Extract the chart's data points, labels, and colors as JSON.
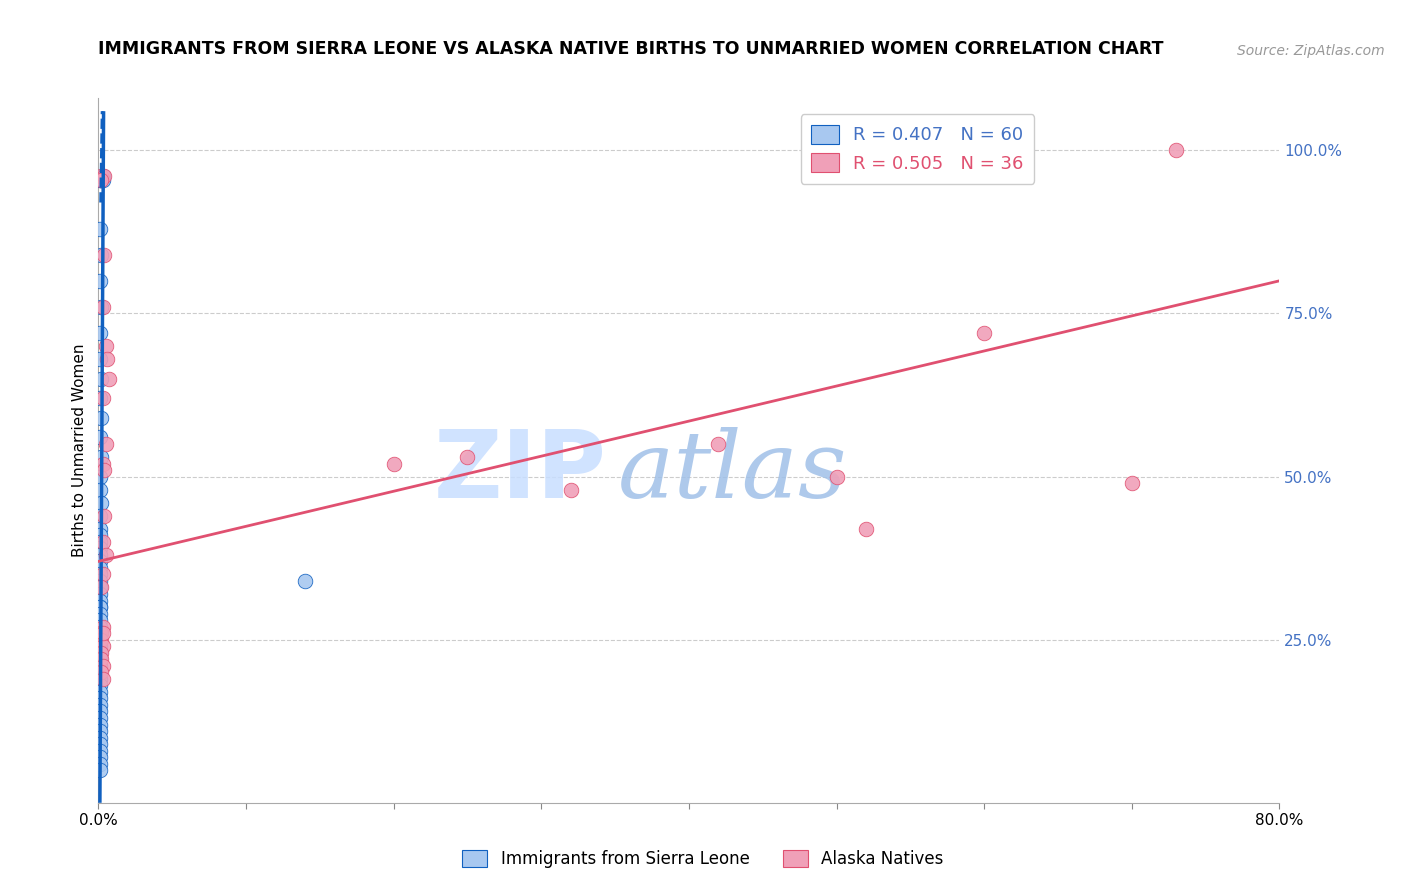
{
  "title": "IMMIGRANTS FROM SIERRA LEONE VS ALASKA NATIVE BIRTHS TO UNMARRIED WOMEN CORRELATION CHART",
  "source": "Source: ZipAtlas.com",
  "ylabel_left": "Births to Unmarried Women",
  "xlim": [
    0.0,
    0.8
  ],
  "ylim": [
    0.0,
    1.08
  ],
  "blue_color": "#A8C8F0",
  "pink_color": "#F0A0B8",
  "blue_line_color": "#1060C0",
  "pink_line_color": "#E05070",
  "legend_blue_label": "R = 0.407   N = 60",
  "legend_pink_label": "R = 0.505   N = 36",
  "watermark_zip": "ZIP",
  "watermark_atlas": "atlas",
  "watermark_color": "#C8DEFF",
  "blue_scatter_x": [
    0.001,
    0.002,
    0.003,
    0.002,
    0.003,
    0.001,
    0.002,
    0.001,
    0.002,
    0.001,
    0.001,
    0.002,
    0.001,
    0.002,
    0.001,
    0.002,
    0.001,
    0.001,
    0.002,
    0.001,
    0.001,
    0.001,
    0.001,
    0.001,
    0.001,
    0.001,
    0.001,
    0.001,
    0.001,
    0.001,
    0.001,
    0.001,
    0.001,
    0.001,
    0.001,
    0.001,
    0.001,
    0.001,
    0.001,
    0.001,
    0.001,
    0.001,
    0.001,
    0.001,
    0.001,
    0.001,
    0.001,
    0.001,
    0.001,
    0.001,
    0.001,
    0.001,
    0.001,
    0.001,
    0.001,
    0.001,
    0.001,
    0.001,
    0.001,
    0.14
  ],
  "blue_scatter_y": [
    0.955,
    0.955,
    0.96,
    0.955,
    0.955,
    0.88,
    0.84,
    0.8,
    0.76,
    0.72,
    0.68,
    0.65,
    0.62,
    0.59,
    0.56,
    0.53,
    0.5,
    0.48,
    0.46,
    0.44,
    0.42,
    0.41,
    0.4,
    0.39,
    0.38,
    0.37,
    0.36,
    0.35,
    0.34,
    0.33,
    0.32,
    0.31,
    0.3,
    0.3,
    0.29,
    0.28,
    0.27,
    0.26,
    0.25,
    0.24,
    0.23,
    0.22,
    0.21,
    0.2,
    0.19,
    0.18,
    0.17,
    0.16,
    0.15,
    0.14,
    0.13,
    0.12,
    0.11,
    0.1,
    0.09,
    0.08,
    0.07,
    0.06,
    0.05,
    0.34
  ],
  "pink_scatter_x": [
    0.002,
    0.004,
    0.002,
    0.004,
    0.003,
    0.005,
    0.006,
    0.007,
    0.003,
    0.005,
    0.003,
    0.004,
    0.004,
    0.003,
    0.003,
    0.002,
    0.003,
    0.002,
    0.002,
    0.003,
    0.002,
    0.002,
    0.003,
    0.002,
    0.003,
    0.2,
    0.25,
    0.32,
    0.42,
    0.5,
    0.52,
    0.6,
    0.7,
    0.73,
    0.005,
    0.003
  ],
  "pink_scatter_y": [
    0.96,
    0.96,
    0.955,
    0.84,
    0.76,
    0.7,
    0.68,
    0.65,
    0.62,
    0.55,
    0.52,
    0.51,
    0.44,
    0.4,
    0.35,
    0.33,
    0.27,
    0.26,
    0.25,
    0.24,
    0.23,
    0.22,
    0.21,
    0.2,
    0.19,
    0.52,
    0.53,
    0.48,
    0.55,
    0.5,
    0.42,
    0.72,
    0.49,
    1.0,
    0.38,
    0.26
  ],
  "blue_line_x0": 0.001,
  "blue_line_y0": 0.0,
  "blue_line_x1": 0.0035,
  "blue_line_y1": 1.06,
  "blue_line_dash_x0": 0.0015,
  "blue_line_dash_y0": 0.92,
  "blue_line_dash_x1": 0.0025,
  "blue_line_dash_y1": 1.06,
  "pink_line_x0": 0.0,
  "pink_line_y0": 0.37,
  "pink_line_x1": 0.8,
  "pink_line_y1": 0.8
}
